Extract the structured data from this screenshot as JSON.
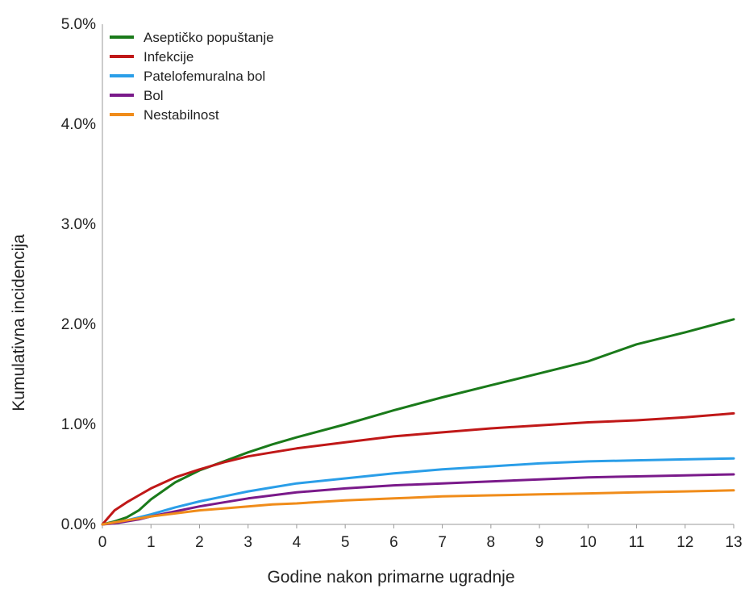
{
  "chart_data": {
    "type": "line",
    "title": "",
    "xlabel": "Godine nakon primarne ugradnje",
    "ylabel": "Kumulativna incidencija",
    "xlim": [
      0,
      13
    ],
    "ylim": [
      0,
      5
    ],
    "x_ticks": [
      "0",
      "1",
      "2",
      "3",
      "4",
      "5",
      "6",
      "7",
      "8",
      "9",
      "10",
      "11",
      "12",
      "13"
    ],
    "y_ticks": [
      "0.0%",
      "1.0%",
      "2.0%",
      "3.0%",
      "4.0%",
      "5.0%"
    ],
    "grid": false,
    "legend": "top-left",
    "x": [
      0,
      0.25,
      0.5,
      0.75,
      1,
      1.5,
      2,
      2.5,
      3,
      3.5,
      4,
      5,
      6,
      7,
      8,
      9,
      10,
      11,
      12,
      13
    ],
    "series": [
      {
        "name": "Aseptičko popuštanje",
        "color": "#1a7a1a",
        "values": [
          0,
          0.03,
          0.07,
          0.14,
          0.25,
          0.42,
          0.54,
          0.63,
          0.72,
          0.8,
          0.87,
          1.0,
          1.14,
          1.27,
          1.39,
          1.51,
          1.63,
          1.8,
          1.92,
          2.05
        ]
      },
      {
        "name": "Infekcije",
        "color": "#c01818",
        "values": [
          0,
          0.14,
          0.22,
          0.29,
          0.36,
          0.47,
          0.55,
          0.62,
          0.68,
          0.72,
          0.76,
          0.82,
          0.88,
          0.92,
          0.96,
          0.99,
          1.02,
          1.04,
          1.07,
          1.11
        ]
      },
      {
        "name": "Patelofemuralna bol",
        "color": "#2a9ee8",
        "values": [
          0,
          0.02,
          0.04,
          0.07,
          0.1,
          0.17,
          0.23,
          0.28,
          0.33,
          0.37,
          0.41,
          0.46,
          0.51,
          0.55,
          0.58,
          0.61,
          0.63,
          0.64,
          0.65,
          0.66
        ]
      },
      {
        "name": "Bol",
        "color": "#7a1a8a",
        "values": [
          0,
          0.01,
          0.03,
          0.05,
          0.08,
          0.13,
          0.18,
          0.22,
          0.26,
          0.29,
          0.32,
          0.36,
          0.39,
          0.41,
          0.43,
          0.45,
          0.47,
          0.48,
          0.49,
          0.5
        ]
      },
      {
        "name": "Nestabilnost",
        "color": "#f08c1a",
        "values": [
          0,
          0.02,
          0.04,
          0.06,
          0.08,
          0.11,
          0.14,
          0.16,
          0.18,
          0.2,
          0.21,
          0.24,
          0.26,
          0.28,
          0.29,
          0.3,
          0.31,
          0.32,
          0.33,
          0.34
        ]
      }
    ]
  }
}
